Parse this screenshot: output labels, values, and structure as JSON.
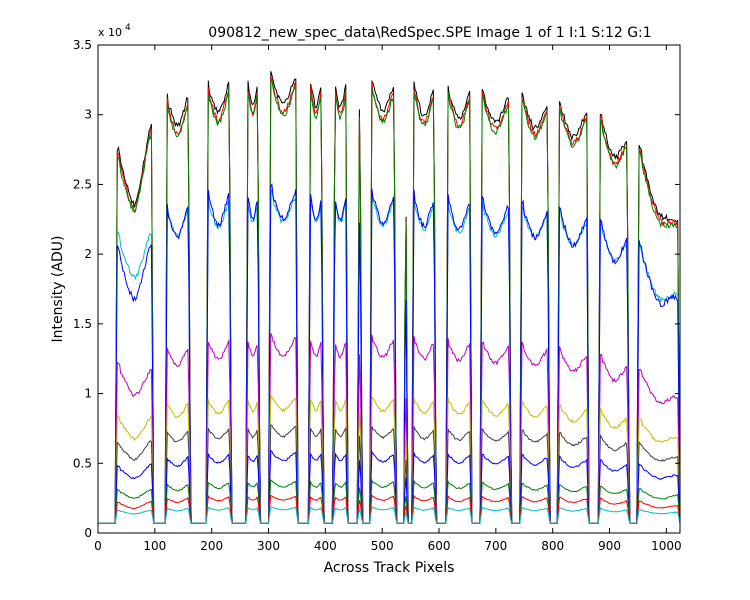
{
  "window": {
    "background": "#ffffff"
  },
  "chart_data": {
    "type": "line",
    "title": "090812_new_spec_data\\RedSpec.SPE  Image 1 of 1  I:1  S:12  G:1",
    "xlabel": "Across Track Pixels",
    "ylabel": "Intensity (ADU)",
    "y_multiplier_label": "x 10",
    "y_multiplier_exponent": "4",
    "xlim": [
      0,
      1024
    ],
    "ylim": [
      0,
      3.5
    ],
    "xticks": [
      0,
      100,
      200,
      300,
      400,
      500,
      600,
      700,
      800,
      900,
      1000
    ],
    "yticks": [
      0,
      0.5,
      1,
      1.5,
      2,
      2.5,
      3,
      3.5
    ],
    "ytick_labels": [
      "0",
      "0.5",
      "1",
      "1.5",
      "2",
      "2.5",
      "3",
      "3.5"
    ],
    "grid": false,
    "legend": "none",
    "gaps": [
      [
        0,
        30
      ],
      [
        98,
        118
      ],
      [
        163,
        190
      ],
      [
        235,
        260
      ],
      [
        285,
        300
      ],
      [
        352,
        370
      ],
      [
        397,
        413
      ],
      [
        440,
        456
      ],
      [
        465,
        478
      ],
      [
        525,
        538
      ],
      [
        545,
        552
      ],
      [
        595,
        612
      ],
      [
        658,
        672
      ],
      [
        727,
        742
      ],
      [
        795,
        808
      ],
      [
        864,
        880
      ],
      [
        935,
        948
      ],
      [
        1024,
        1024
      ]
    ],
    "series": [
      {
        "color": "#000000",
        "baseline": 0.07,
        "envelope": {
          "x": [
            35,
            65,
            90,
            120,
            160,
            250,
            330,
            420,
            520,
            640,
            760,
            880,
            950,
            1000,
            1024
          ],
          "y": [
            2.62,
            2.45,
            2.8,
            3.0,
            3.05,
            3.17,
            3.18,
            3.16,
            3.12,
            3.07,
            3.02,
            2.9,
            2.65,
            2.3,
            2.1
          ]
        },
        "amplitude": 0.17
      },
      {
        "color": "#ff0000",
        "baseline": 0.07,
        "envelope": {
          "x": [
            35,
            65,
            90,
            120,
            160,
            250,
            330,
            420,
            520,
            640,
            760,
            880,
            950,
            1000,
            1024
          ],
          "y": [
            2.58,
            2.42,
            2.76,
            2.96,
            3.0,
            3.12,
            3.13,
            3.11,
            3.07,
            3.03,
            2.98,
            2.86,
            2.62,
            2.27,
            2.08
          ]
        },
        "amplitude": 0.18
      },
      {
        "color": "#008000",
        "baseline": 0.07,
        "envelope": {
          "x": [
            35,
            65,
            90,
            120,
            160,
            250,
            330,
            420,
            520,
            640,
            760,
            880,
            950,
            1000,
            1024
          ],
          "y": [
            2.55,
            2.4,
            2.74,
            2.94,
            2.98,
            3.1,
            3.11,
            3.09,
            3.05,
            3.01,
            2.96,
            2.84,
            2.6,
            2.25,
            2.06
          ]
        },
        "amplitude": 0.18
      },
      {
        "color": "#00bfbf",
        "baseline": 0.07,
        "envelope": {
          "x": [
            35,
            65,
            90,
            120,
            160,
            250,
            330,
            420,
            520,
            640,
            760,
            880,
            950,
            1000,
            1024
          ],
          "y": [
            2.02,
            1.92,
            2.05,
            2.2,
            2.25,
            2.32,
            2.33,
            2.32,
            2.3,
            2.25,
            2.22,
            2.12,
            1.95,
            1.72,
            1.6
          ]
        },
        "amplitude": 0.16
      },
      {
        "color": "#0000ff",
        "baseline": 0.07,
        "envelope": {
          "x": [
            35,
            65,
            90,
            120,
            160,
            250,
            330,
            420,
            520,
            640,
            760,
            880,
            950,
            1000,
            1024
          ],
          "y": [
            1.9,
            1.78,
            1.95,
            2.2,
            2.27,
            2.36,
            2.36,
            2.35,
            2.33,
            2.28,
            2.24,
            2.13,
            1.95,
            1.7,
            1.55
          ]
        },
        "amplitude": 0.18
      },
      {
        "color": "#bf00bf",
        "baseline": 0.07,
        "envelope": {
          "x": [
            35,
            65,
            90,
            120,
            160,
            250,
            330,
            420,
            520,
            640,
            760,
            880,
            950,
            1000,
            1024
          ],
          "y": [
            1.13,
            1.05,
            1.1,
            1.25,
            1.28,
            1.33,
            1.34,
            1.33,
            1.33,
            1.3,
            1.27,
            1.2,
            1.1,
            0.97,
            0.9
          ]
        },
        "amplitude": 0.11
      },
      {
        "color": "#bfbf00",
        "baseline": 0.07,
        "envelope": {
          "x": [
            35,
            65,
            90,
            120,
            160,
            250,
            330,
            420,
            520,
            640,
            760,
            880,
            950,
            1000,
            1024
          ],
          "y": [
            0.77,
            0.72,
            0.78,
            0.87,
            0.89,
            0.92,
            0.93,
            0.93,
            0.92,
            0.9,
            0.88,
            0.83,
            0.76,
            0.68,
            0.64
          ]
        },
        "amplitude": 0.08
      },
      {
        "color": "#404040",
        "baseline": 0.07,
        "envelope": {
          "x": [
            35,
            65,
            90,
            120,
            160,
            250,
            330,
            420,
            520,
            640,
            760,
            880,
            950,
            1000,
            1024
          ],
          "y": [
            0.6,
            0.56,
            0.62,
            0.68,
            0.7,
            0.72,
            0.73,
            0.73,
            0.72,
            0.7,
            0.69,
            0.65,
            0.6,
            0.54,
            0.5
          ]
        },
        "amplitude": 0.06
      },
      {
        "color": "#0000ff",
        "baseline": 0.07,
        "envelope": {
          "x": [
            35,
            65,
            90,
            120,
            160,
            250,
            330,
            420,
            520,
            640,
            760,
            880,
            950,
            1000,
            1024
          ],
          "y": [
            0.44,
            0.42,
            0.46,
            0.5,
            0.52,
            0.54,
            0.55,
            0.55,
            0.54,
            0.53,
            0.52,
            0.49,
            0.45,
            0.41,
            0.38
          ]
        },
        "amplitude": 0.05
      },
      {
        "color": "#008000",
        "baseline": 0.07,
        "envelope": {
          "x": [
            35,
            65,
            90,
            120,
            160,
            250,
            330,
            420,
            520,
            640,
            760,
            880,
            950,
            1000,
            1024
          ],
          "y": [
            0.28,
            0.27,
            0.29,
            0.32,
            0.33,
            0.35,
            0.35,
            0.35,
            0.35,
            0.34,
            0.33,
            0.31,
            0.29,
            0.26,
            0.25
          ]
        },
        "amplitude": 0.035
      },
      {
        "color": "#ff0000",
        "baseline": 0.07,
        "envelope": {
          "x": [
            35,
            65,
            90,
            120,
            160,
            250,
            330,
            420,
            520,
            640,
            760,
            880,
            950,
            1000,
            1024
          ],
          "y": [
            0.2,
            0.19,
            0.21,
            0.23,
            0.24,
            0.25,
            0.25,
            0.25,
            0.25,
            0.24,
            0.24,
            0.23,
            0.21,
            0.19,
            0.18
          ]
        },
        "amplitude": 0.025
      },
      {
        "color": "#00bfbf",
        "baseline": 0.07,
        "envelope": {
          "x": [
            35,
            65,
            90,
            120,
            160,
            250,
            330,
            420,
            520,
            640,
            760,
            880,
            950,
            1000,
            1024
          ],
          "y": [
            0.15,
            0.145,
            0.155,
            0.165,
            0.17,
            0.175,
            0.175,
            0.175,
            0.175,
            0.17,
            0.17,
            0.165,
            0.155,
            0.145,
            0.14
          ]
        },
        "amplitude": 0.015
      }
    ]
  }
}
